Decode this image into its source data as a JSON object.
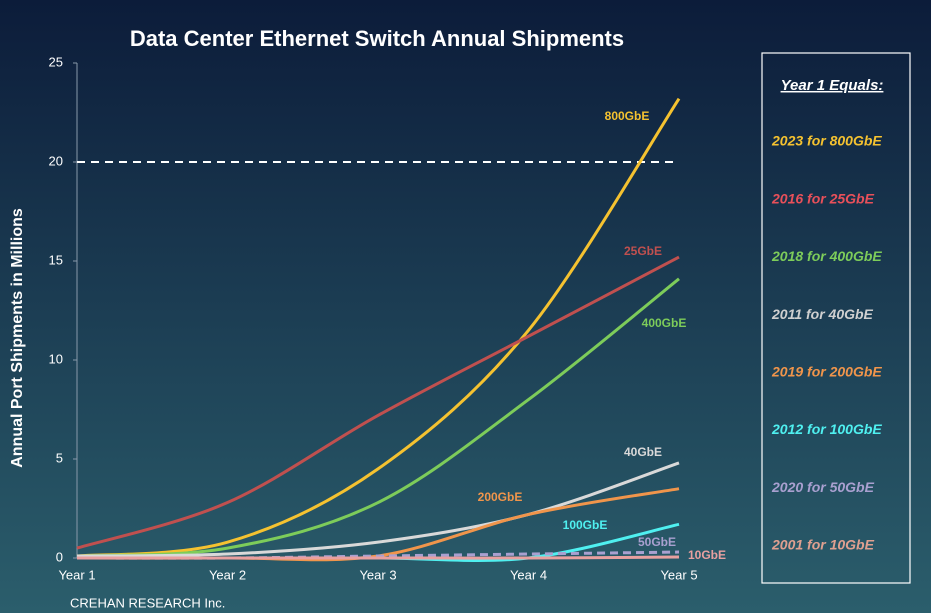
{
  "chart_data": {
    "type": "line",
    "title": "Data Center Ethernet Switch Annual Shipments",
    "y_label": "Annual Port Shipments in Millions",
    "footer": "CREHAN RESEARCH Inc.",
    "categories": [
      "Year 1",
      "Year 2",
      "Year 3",
      "Year 4",
      "Year 5"
    ],
    "ylim": [
      0,
      25
    ],
    "yticks": [
      0,
      5,
      10,
      15,
      20,
      25
    ],
    "hlines": [
      20
    ],
    "series": [
      {
        "name": "800GbE",
        "color": "#f5c230",
        "values": [
          0.1,
          0.8,
          4.5,
          11.5,
          23.2
        ]
      },
      {
        "name": "25GbE",
        "color": "#c0504f",
        "values": [
          0.5,
          2.8,
          7.2,
          11.2,
          15.2
        ]
      },
      {
        "name": "400GbE",
        "color": "#7dcc5a",
        "values": [
          0.1,
          0.5,
          2.8,
          8.0,
          14.1
        ]
      },
      {
        "name": "40GbE",
        "color": "#d9d9d9",
        "values": [
          0.1,
          0.2,
          0.8,
          2.2,
          4.8
        ]
      },
      {
        "name": "200GbE",
        "color": "#f0954b",
        "values": [
          0,
          0,
          0.1,
          2.2,
          3.5
        ]
      },
      {
        "name": "100GbE",
        "color": "#4ff0f0",
        "values": [
          0,
          0,
          0,
          0,
          1.7
        ]
      },
      {
        "name": "50GbE",
        "color": "#a9a0d0",
        "dashed": true,
        "values": [
          0,
          0,
          0.1,
          0.2,
          0.3
        ]
      },
      {
        "name": "10GbE",
        "color": "#e8a0a0",
        "values": [
          0,
          0,
          0,
          0,
          0.05
        ]
      }
    ],
    "legend_title": "Year 1 Equals:",
    "legend_entries": [
      {
        "text": "2023 for 800GbE",
        "color": "#f5c230"
      },
      {
        "text": "2016 for 25GbE",
        "color": "#e8505a"
      },
      {
        "text": "2018 for 400GbE",
        "color": "#7dcc5a"
      },
      {
        "text": "2011 for 40GbE",
        "color": "#d0d0d0"
      },
      {
        "text": "2019 for 200GbE",
        "color": "#f0954b"
      },
      {
        "text": "2012 for 100GbE",
        "color": "#4ff0f0"
      },
      {
        "text": "2020 for 50GbE",
        "color": "#a9a0d0"
      },
      {
        "text": "2001 for 10GbE",
        "color": "#e0a090"
      }
    ]
  }
}
